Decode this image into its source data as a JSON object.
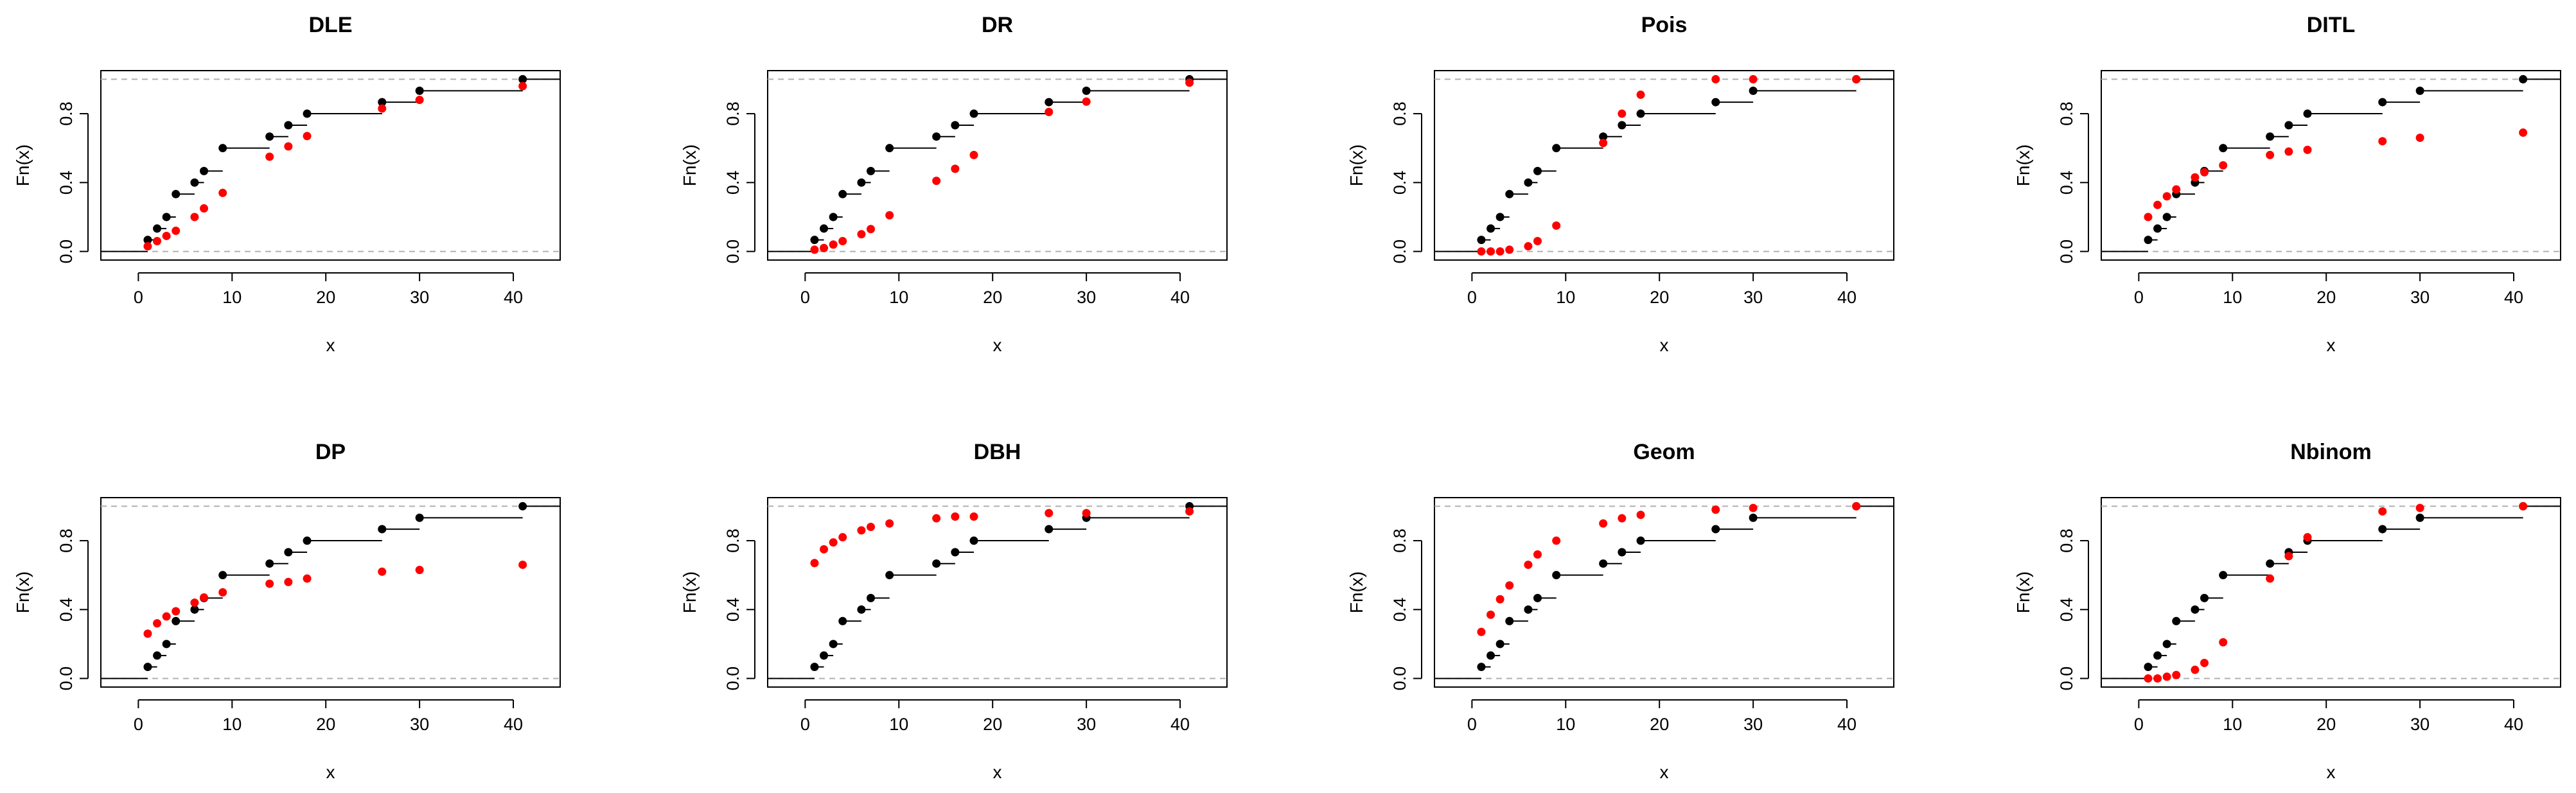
{
  "chart_data": [
    {
      "type": "scatter",
      "title": "DLE",
      "xlabel": "x",
      "ylabel": "Fn(x)",
      "xlim": [
        -4,
        45
      ],
      "ylim": [
        0,
        1
      ],
      "x_ticks": [
        "0",
        "10",
        "20",
        "30",
        "40"
      ],
      "y_ticks": [
        "0.0",
        "0.4",
        "0.8"
      ],
      "grid": false,
      "series": [
        {
          "color": "#000000",
          "style": "ecdf-step",
          "x": [
            1,
            2,
            3,
            4,
            6,
            7,
            9,
            14,
            16,
            18,
            26,
            30,
            41
          ],
          "y": [
            0.067,
            0.133,
            0.2,
            0.333,
            0.4,
            0.467,
            0.6,
            0.667,
            0.733,
            0.8,
            0.867,
            0.933,
            1.0
          ]
        },
        {
          "color": "#ff0000",
          "style": "points",
          "x": [
            1,
            2,
            3,
            4,
            6,
            7,
            9,
            14,
            16,
            18,
            26,
            30,
            41
          ],
          "y": [
            0.03,
            0.06,
            0.09,
            0.12,
            0.2,
            0.25,
            0.34,
            0.55,
            0.61,
            0.67,
            0.83,
            0.88,
            0.96
          ]
        }
      ]
    },
    {
      "type": "scatter",
      "title": "DR",
      "xlabel": "x",
      "ylabel": "Fn(x)",
      "xlim": [
        -4,
        45
      ],
      "ylim": [
        0,
        1
      ],
      "x_ticks": [
        "0",
        "10",
        "20",
        "30",
        "40"
      ],
      "y_ticks": [
        "0.0",
        "0.4",
        "0.8"
      ],
      "grid": false,
      "series": [
        {
          "color": "#000000",
          "style": "ecdf-step",
          "x": [
            1,
            2,
            3,
            4,
            6,
            7,
            9,
            14,
            16,
            18,
            26,
            30,
            41
          ],
          "y": [
            0.067,
            0.133,
            0.2,
            0.333,
            0.4,
            0.467,
            0.6,
            0.667,
            0.733,
            0.8,
            0.867,
            0.933,
            1.0
          ]
        },
        {
          "color": "#ff0000",
          "style": "points",
          "x": [
            1,
            2,
            3,
            4,
            6,
            7,
            9,
            14,
            16,
            18,
            26,
            30,
            41
          ],
          "y": [
            0.01,
            0.02,
            0.04,
            0.06,
            0.1,
            0.13,
            0.21,
            0.41,
            0.48,
            0.56,
            0.81,
            0.87,
            0.98
          ]
        }
      ]
    },
    {
      "type": "scatter",
      "title": "Pois",
      "xlabel": "x",
      "ylabel": "Fn(x)",
      "xlim": [
        -4,
        45
      ],
      "ylim": [
        0,
        1
      ],
      "x_ticks": [
        "0",
        "10",
        "20",
        "30",
        "40"
      ],
      "y_ticks": [
        "0.0",
        "0.4",
        "0.8"
      ],
      "grid": false,
      "series": [
        {
          "color": "#000000",
          "style": "ecdf-step",
          "x": [
            1,
            2,
            3,
            4,
            6,
            7,
            9,
            14,
            16,
            18,
            26,
            30,
            41
          ],
          "y": [
            0.067,
            0.133,
            0.2,
            0.333,
            0.4,
            0.467,
            0.6,
            0.667,
            0.733,
            0.8,
            0.867,
            0.933,
            1.0
          ]
        },
        {
          "color": "#ff0000",
          "style": "points",
          "x": [
            1,
            2,
            3,
            4,
            6,
            7,
            9,
            14,
            16,
            18,
            26,
            30,
            41
          ],
          "y": [
            0.0,
            0.0,
            0.0,
            0.01,
            0.03,
            0.06,
            0.15,
            0.63,
            0.8,
            0.91,
            1.0,
            1.0,
            1.0
          ]
        }
      ]
    },
    {
      "type": "scatter",
      "title": "DITL",
      "xlabel": "x",
      "ylabel": "Fn(x)",
      "xlim": [
        -4,
        45
      ],
      "ylim": [
        0,
        1
      ],
      "x_ticks": [
        "0",
        "10",
        "20",
        "30",
        "40"
      ],
      "y_ticks": [
        "0.0",
        "0.4",
        "0.8"
      ],
      "grid": false,
      "series": [
        {
          "color": "#000000",
          "style": "ecdf-step",
          "x": [
            1,
            2,
            3,
            4,
            6,
            7,
            9,
            14,
            16,
            18,
            26,
            30,
            41
          ],
          "y": [
            0.067,
            0.133,
            0.2,
            0.333,
            0.4,
            0.467,
            0.6,
            0.667,
            0.733,
            0.8,
            0.867,
            0.933,
            1.0
          ]
        },
        {
          "color": "#ff0000",
          "style": "points",
          "x": [
            1,
            2,
            3,
            4,
            6,
            7,
            9,
            14,
            16,
            18,
            26,
            30,
            41
          ],
          "y": [
            0.2,
            0.27,
            0.32,
            0.36,
            0.43,
            0.46,
            0.5,
            0.56,
            0.58,
            0.59,
            0.64,
            0.66,
            0.69
          ]
        }
      ]
    },
    {
      "type": "scatter",
      "title": "DP",
      "xlabel": "x",
      "ylabel": "Fn(x)",
      "xlim": [
        -4,
        45
      ],
      "ylim": [
        0,
        1
      ],
      "x_ticks": [
        "0",
        "10",
        "20",
        "30",
        "40"
      ],
      "y_ticks": [
        "0.0",
        "0.4",
        "0.8"
      ],
      "grid": false,
      "series": [
        {
          "color": "#000000",
          "style": "ecdf-step",
          "x": [
            1,
            2,
            3,
            4,
            6,
            7,
            9,
            14,
            16,
            18,
            26,
            30,
            41
          ],
          "y": [
            0.067,
            0.133,
            0.2,
            0.333,
            0.4,
            0.467,
            0.6,
            0.667,
            0.733,
            0.8,
            0.867,
            0.933,
            1.0
          ]
        },
        {
          "color": "#ff0000",
          "style": "points",
          "x": [
            1,
            2,
            3,
            4,
            6,
            7,
            9,
            14,
            16,
            18,
            26,
            30,
            41
          ],
          "y": [
            0.26,
            0.32,
            0.36,
            0.39,
            0.44,
            0.47,
            0.5,
            0.55,
            0.56,
            0.58,
            0.62,
            0.63,
            0.66
          ]
        }
      ]
    },
    {
      "type": "scatter",
      "title": "DBH",
      "xlabel": "x",
      "ylabel": "Fn(x)",
      "xlim": [
        -4,
        45
      ],
      "ylim": [
        0,
        1
      ],
      "x_ticks": [
        "0",
        "10",
        "20",
        "30",
        "40"
      ],
      "y_ticks": [
        "0.0",
        "0.4",
        "0.8"
      ],
      "grid": false,
      "series": [
        {
          "color": "#000000",
          "style": "ecdf-step",
          "x": [
            1,
            2,
            3,
            4,
            6,
            7,
            9,
            14,
            16,
            18,
            26,
            30,
            41
          ],
          "y": [
            0.067,
            0.133,
            0.2,
            0.333,
            0.4,
            0.467,
            0.6,
            0.667,
            0.733,
            0.8,
            0.867,
            0.933,
            1.0
          ]
        },
        {
          "color": "#ff0000",
          "style": "points",
          "x": [
            1,
            2,
            3,
            4,
            6,
            7,
            9,
            14,
            16,
            18,
            26,
            30,
            41
          ],
          "y": [
            0.67,
            0.75,
            0.79,
            0.82,
            0.86,
            0.88,
            0.9,
            0.93,
            0.94,
            0.94,
            0.96,
            0.96,
            0.97
          ]
        }
      ]
    },
    {
      "type": "scatter",
      "title": "Geom",
      "xlabel": "x",
      "ylabel": "Fn(x)",
      "xlim": [
        -4,
        45
      ],
      "ylim": [
        0,
        1
      ],
      "x_ticks": [
        "0",
        "10",
        "20",
        "30",
        "40"
      ],
      "y_ticks": [
        "0.0",
        "0.4",
        "0.8"
      ],
      "grid": false,
      "series": [
        {
          "color": "#000000",
          "style": "ecdf-step",
          "x": [
            1,
            2,
            3,
            4,
            6,
            7,
            9,
            14,
            16,
            18,
            26,
            30,
            41
          ],
          "y": [
            0.067,
            0.133,
            0.2,
            0.333,
            0.4,
            0.467,
            0.6,
            0.667,
            0.733,
            0.8,
            0.867,
            0.933,
            1.0
          ]
        },
        {
          "color": "#ff0000",
          "style": "points",
          "x": [
            1,
            2,
            3,
            4,
            6,
            7,
            9,
            14,
            16,
            18,
            26,
            30,
            41
          ],
          "y": [
            0.27,
            0.37,
            0.46,
            0.54,
            0.66,
            0.72,
            0.8,
            0.9,
            0.93,
            0.95,
            0.98,
            0.99,
            1.0
          ]
        }
      ]
    },
    {
      "type": "scatter",
      "title": "Nbinom",
      "xlabel": "x",
      "ylabel": "Fn(x)",
      "xlim": [
        -4,
        45
      ],
      "ylim": [
        0,
        1
      ],
      "x_ticks": [
        "0",
        "10",
        "20",
        "30",
        "40"
      ],
      "y_ticks": [
        "0.0",
        "0.4",
        "0.8"
      ],
      "grid": false,
      "series": [
        {
          "color": "#000000",
          "style": "ecdf-step",
          "x": [
            1,
            2,
            3,
            4,
            6,
            7,
            9,
            14,
            16,
            18,
            26,
            30,
            41
          ],
          "y": [
            0.067,
            0.133,
            0.2,
            0.333,
            0.4,
            0.467,
            0.6,
            0.667,
            0.733,
            0.8,
            0.867,
            0.933,
            1.0
          ]
        },
        {
          "color": "#ff0000",
          "style": "points",
          "x": [
            1,
            2,
            3,
            4,
            6,
            7,
            9,
            14,
            16,
            18,
            26,
            30,
            41
          ],
          "y": [
            0.0,
            0.0,
            0.01,
            0.02,
            0.05,
            0.09,
            0.21,
            0.58,
            0.71,
            0.82,
            0.97,
            0.99,
            1.0
          ]
        }
      ]
    }
  ]
}
